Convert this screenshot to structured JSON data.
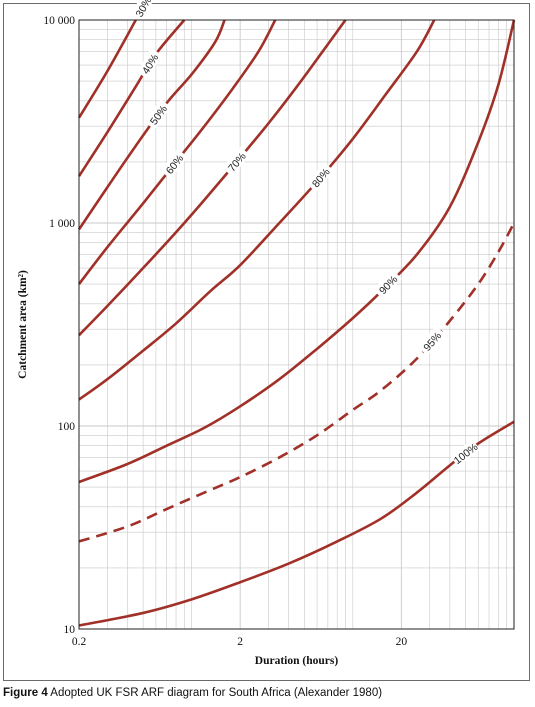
{
  "chart_data": {
    "type": "line",
    "xlabel": "Duration (hours)",
    "ylabel": "Catchment area (km²)",
    "x_scale": "log",
    "y_scale": "log",
    "xlim": [
      0.2,
      100
    ],
    "ylim": [
      10,
      10000
    ],
    "x_ticks": [
      "0.2",
      "2",
      "20"
    ],
    "y_ticks": [
      "10",
      "100",
      "1 000",
      "10 000"
    ],
    "grid": true,
    "line_color": "#a03028",
    "series": [
      {
        "name": "30%",
        "dashed": false,
        "points": [
          [
            0.2,
            3300
          ],
          [
            0.3,
            5600
          ],
          [
            0.45,
            10000
          ]
        ]
      },
      {
        "name": "40%",
        "dashed": false,
        "points": [
          [
            0.2,
            1700
          ],
          [
            0.3,
            2800
          ],
          [
            0.45,
            4700
          ],
          [
            0.6,
            6800
          ],
          [
            0.9,
            10000
          ]
        ]
      },
      {
        "name": "50%",
        "dashed": false,
        "points": [
          [
            0.2,
            930
          ],
          [
            0.3,
            1500
          ],
          [
            0.45,
            2400
          ],
          [
            0.7,
            3900
          ],
          [
            1,
            5400
          ],
          [
            1.4,
            7800
          ],
          [
            1.6,
            10000
          ]
        ]
      },
      {
        "name": "60%",
        "dashed": false,
        "points": [
          [
            0.2,
            500
          ],
          [
            0.3,
            760
          ],
          [
            0.5,
            1250
          ],
          [
            0.8,
            2000
          ],
          [
            1.2,
            3000
          ],
          [
            1.8,
            4600
          ],
          [
            2.6,
            7000
          ],
          [
            3.3,
            10000
          ]
        ]
      },
      {
        "name": "70%",
        "dashed": false,
        "points": [
          [
            0.2,
            280
          ],
          [
            0.3,
            390
          ],
          [
            0.5,
            600
          ],
          [
            0.8,
            900
          ],
          [
            1.2,
            1300
          ],
          [
            2,
            2100
          ],
          [
            3,
            3100
          ],
          [
            4.5,
            4700
          ],
          [
            6.5,
            7000
          ],
          [
            9,
            10000
          ]
        ]
      },
      {
        "name": "80%",
        "dashed": false,
        "points": [
          [
            0.2,
            135
          ],
          [
            0.3,
            170
          ],
          [
            0.5,
            235
          ],
          [
            0.8,
            320
          ],
          [
            1.3,
            460
          ],
          [
            2,
            620
          ],
          [
            3.5,
            1000
          ],
          [
            6,
            1600
          ],
          [
            10,
            2600
          ],
          [
            16,
            4300
          ],
          [
            25,
            7000
          ],
          [
            32,
            10000
          ]
        ]
      },
      {
        "name": "90%",
        "dashed": false,
        "points": [
          [
            0.2,
            53
          ],
          [
            0.4,
            65
          ],
          [
            0.7,
            80
          ],
          [
            1.2,
            98
          ],
          [
            2,
            125
          ],
          [
            3.5,
            170
          ],
          [
            6,
            240
          ],
          [
            10,
            340
          ],
          [
            15,
            460
          ],
          [
            25,
            700
          ],
          [
            40,
            1200
          ],
          [
            60,
            2500
          ],
          [
            80,
            4800
          ],
          [
            100,
            10000
          ]
        ]
      },
      {
        "name": "95%",
        "dashed": true,
        "points": [
          [
            0.2,
            27
          ],
          [
            0.4,
            32
          ],
          [
            0.7,
            39
          ],
          [
            1.2,
            47
          ],
          [
            2,
            56
          ],
          [
            3.5,
            70
          ],
          [
            6,
            90
          ],
          [
            10,
            120
          ],
          [
            15,
            150
          ],
          [
            25,
            215
          ],
          [
            40,
            330
          ],
          [
            60,
            500
          ],
          [
            80,
            720
          ],
          [
            100,
            1000
          ]
        ]
      },
      {
        "name": "100%",
        "dashed": false,
        "points": [
          [
            0.2,
            10.4
          ],
          [
            0.5,
            12
          ],
          [
            1,
            14
          ],
          [
            2,
            17
          ],
          [
            4,
            21
          ],
          [
            8,
            27
          ],
          [
            15,
            35
          ],
          [
            25,
            47
          ],
          [
            40,
            64
          ],
          [
            60,
            82
          ],
          [
            100,
            105
          ]
        ]
      }
    ]
  },
  "caption": {
    "figure_label": "Figure 4",
    "text": "Adopted UK FSR ARF diagram for South Africa (Alexander 1980)"
  }
}
